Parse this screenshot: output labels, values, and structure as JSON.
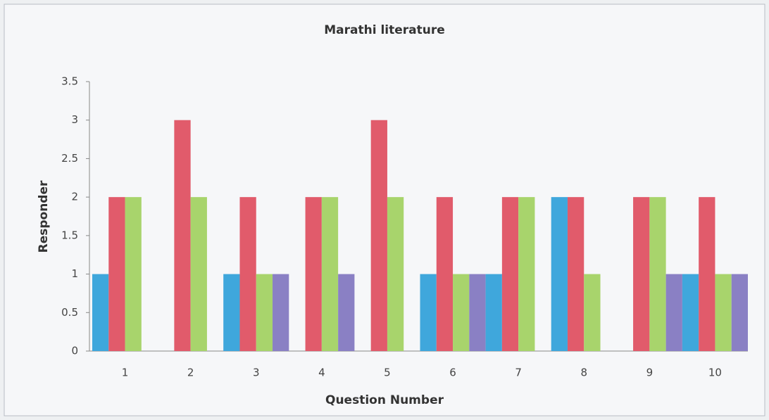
{
  "chart_data": {
    "type": "bar",
    "title": "Marathi literature",
    "x_label": "Question Number",
    "y_label": "Responder",
    "categories": [
      "1",
      "2",
      "3",
      "4",
      "5",
      "6",
      "7",
      "8",
      "9",
      "10"
    ],
    "series": [
      {
        "color": "#3fa7dc",
        "values": [
          1,
          0,
          1,
          0,
          0,
          1,
          1,
          2,
          0,
          1
        ]
      },
      {
        "color": "#e15b6b",
        "values": [
          2,
          3,
          2,
          2,
          3,
          2,
          2,
          2,
          2,
          2
        ]
      },
      {
        "color": "#a8d46c",
        "values": [
          2,
          2,
          1,
          2,
          2,
          1,
          2,
          1,
          2,
          1
        ]
      },
      {
        "color": "#8a80c4",
        "values": [
          0,
          0,
          1,
          1,
          0,
          1,
          0,
          0,
          1,
          1
        ]
      }
    ],
    "ylim": [
      0,
      3.5
    ],
    "yticks": [
      0,
      0.5,
      1,
      1.5,
      2,
      2.5,
      3,
      3.5
    ],
    "grid": false
  }
}
